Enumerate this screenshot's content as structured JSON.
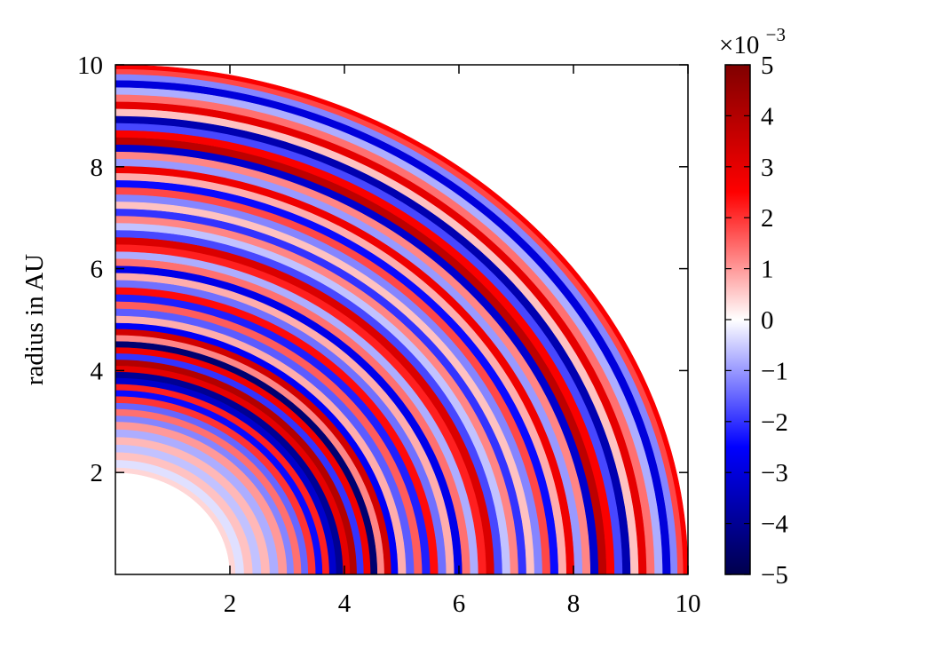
{
  "chart_data": {
    "type": "heatmap",
    "subtype": "polar-quadrant",
    "title": "",
    "xlabel": "",
    "ylabel": "radius in AU",
    "xlim": [
      0,
      10
    ],
    "ylim": [
      0,
      10
    ],
    "x_ticks": [
      "2",
      "4",
      "6",
      "8",
      "10"
    ],
    "y_ticks": [
      "2",
      "4",
      "6",
      "8",
      "10"
    ],
    "inner_radius": 2.0,
    "outer_radius": 10.0,
    "colorbar": {
      "min": -5,
      "max": 5,
      "ticks": [
        "5",
        "4",
        "3",
        "2",
        "1",
        "0",
        "−1",
        "−2",
        "−3",
        "−4",
        "−5"
      ],
      "multiplier_base": "×10",
      "multiplier_exponent": "−3",
      "colormap": [
        "#00004c",
        "#0000ff",
        "#ffffff",
        "#ff0000",
        "#800000"
      ]
    },
    "rings": [
      {
        "r": 2.1,
        "v": 0.4
      },
      {
        "r": 2.25,
        "v": -0.3
      },
      {
        "r": 2.4,
        "v": 0.6
      },
      {
        "r": 2.55,
        "v": -0.6
      },
      {
        "r": 2.7,
        "v": 0.7
      },
      {
        "r": 2.85,
        "v": -0.8
      },
      {
        "r": 3.0,
        "v": 1.0
      },
      {
        "r": 3.12,
        "v": -1.2
      },
      {
        "r": 3.25,
        "v": 1.4
      },
      {
        "r": 3.37,
        "v": -1.5
      },
      {
        "r": 3.5,
        "v": 2.0
      },
      {
        "r": 3.62,
        "v": -2.4
      },
      {
        "r": 3.74,
        "v": 2.2
      },
      {
        "r": 3.86,
        "v": -3.2
      },
      {
        "r": 3.98,
        "v": -4.0
      },
      {
        "r": 4.1,
        "v": 3.0
      },
      {
        "r": 4.22,
        "v": 4.0
      },
      {
        "r": 4.34,
        "v": -2.0
      },
      {
        "r": 4.46,
        "v": 2.8
      },
      {
        "r": 4.58,
        "v": -4.5
      },
      {
        "r": 4.7,
        "v": 1.2
      },
      {
        "r": 4.82,
        "v": 3.4
      },
      {
        "r": 4.94,
        "v": -2.6
      },
      {
        "r": 5.08,
        "v": 0.8
      },
      {
        "r": 5.22,
        "v": -1.6
      },
      {
        "r": 5.36,
        "v": 1.6
      },
      {
        "r": 5.5,
        "v": -2.2
      },
      {
        "r": 5.64,
        "v": 2.4
      },
      {
        "r": 5.78,
        "v": -1.4
      },
      {
        "r": 5.92,
        "v": 0.8
      },
      {
        "r": 6.06,
        "v": -2.8
      },
      {
        "r": 6.2,
        "v": 1.4
      },
      {
        "r": 6.34,
        "v": -0.8
      },
      {
        "r": 6.48,
        "v": 2.2
      },
      {
        "r": 6.62,
        "v": 3.2
      },
      {
        "r": 6.76,
        "v": -1.8
      },
      {
        "r": 6.9,
        "v": -0.6
      },
      {
        "r": 7.04,
        "v": 1.2
      },
      {
        "r": 7.18,
        "v": -2.0
      },
      {
        "r": 7.32,
        "v": 0.6
      },
      {
        "r": 7.46,
        "v": -1.2
      },
      {
        "r": 7.6,
        "v": 1.8
      },
      {
        "r": 7.74,
        "v": -2.4
      },
      {
        "r": 7.88,
        "v": 0.8
      },
      {
        "r": 8.02,
        "v": 2.8
      },
      {
        "r": 8.16,
        "v": -1.0
      },
      {
        "r": 8.3,
        "v": 1.2
      },
      {
        "r": 8.44,
        "v": -3.2
      },
      {
        "r": 8.58,
        "v": 3.8
      },
      {
        "r": 8.72,
        "v": 2.6
      },
      {
        "r": 8.86,
        "v": -1.8
      },
      {
        "r": 9.0,
        "v": -3.6
      },
      {
        "r": 9.14,
        "v": 0.6
      },
      {
        "r": 9.28,
        "v": 3.0
      },
      {
        "r": 9.42,
        "v": 1.4
      },
      {
        "r": 9.56,
        "v": -0.8
      },
      {
        "r": 9.7,
        "v": -3.0
      },
      {
        "r": 9.82,
        "v": -1.2
      },
      {
        "r": 9.92,
        "v": 1.8
      },
      {
        "r": 10.0,
        "v": 2.6
      }
    ]
  }
}
